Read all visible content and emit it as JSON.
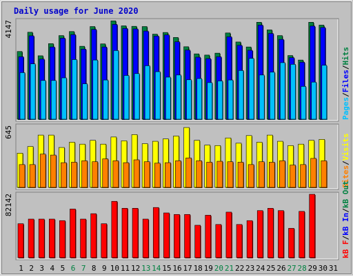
{
  "title": "Daily usage for June 2020",
  "colors": {
    "background": "#c0c0c0",
    "title": "#0000cc",
    "panel_bg": "#c0c0c0",
    "hits": "#008040",
    "files": "#0000ff",
    "pages": "#00c0ff",
    "visits": "#ffff00",
    "sites": "#ff8000",
    "kbf": "#ff0000",
    "kbin": "#0000ff",
    "kbout": "#008040",
    "weekend": "#008040",
    "weekday": "#000000"
  },
  "chart_data": {
    "type": "bar",
    "title": "Daily usage for June 2020",
    "categories": [
      "1",
      "2",
      "3",
      "4",
      "5",
      "6",
      "7",
      "8",
      "9",
      "10",
      "11",
      "12",
      "13",
      "14",
      "15",
      "16",
      "17",
      "18",
      "19",
      "20",
      "21",
      "22",
      "23",
      "24",
      "25",
      "26",
      "27",
      "28",
      "29",
      "30",
      "31"
    ],
    "weekend_days": [
      6,
      7,
      13,
      14,
      20,
      21,
      27,
      28
    ],
    "panels": [
      {
        "max_label": "4147",
        "ylim": [
          0,
          4147
        ],
        "legend": [
          {
            "text": "Pages",
            "color": "#00c0ff"
          },
          {
            "text": "/",
            "color": "#000000"
          },
          {
            "text": "Files",
            "color": "#0000ff"
          },
          {
            "text": "/",
            "color": "#000000"
          },
          {
            "text": "Hits",
            "color": "#008040"
          }
        ],
        "series": [
          {
            "name": "Hits",
            "color": "#008040",
            "values": [
              2850,
              3660,
              2670,
              3180,
              3520,
              3690,
              3070,
              3900,
              3170,
              4140,
              3930,
              3910,
              3900,
              3580,
              3650,
              3440,
              3050,
              2750,
              2700,
              2780,
              3630,
              3250,
              3040,
              4080,
              3760,
              3520,
              2680,
              2490,
              4080,
              3960,
              0
            ]
          },
          {
            "name": "Files",
            "color": "#0000ff",
            "values": [
              2630,
              3510,
              2530,
              3040,
              3410,
              3560,
              2950,
              3780,
              3040,
              3990,
              3820,
              3800,
              3710,
              3500,
              3550,
              3260,
              2910,
              2610,
              2550,
              2630,
              3470,
              3110,
              2900,
              3960,
              3610,
              3360,
              2590,
              2400,
              3920,
              3860,
              0
            ]
          },
          {
            "name": "Pages",
            "color": "#00c0ff",
            "values": [
              1960,
              2330,
              1630,
              1630,
              1740,
              2510,
              1490,
              2490,
              1650,
              2890,
              1840,
              1920,
              2250,
              2000,
              1770,
              1860,
              1660,
              1710,
              1540,
              1610,
              1650,
              2050,
              2560,
              1860,
              1980,
              2380,
              2310,
              1380,
              1560,
              2270,
              0
            ]
          }
        ]
      },
      {
        "max_label": "645",
        "ylim": [
          0,
          645
        ],
        "legend": [
          {
            "text": "Sites",
            "color": "#ff8000"
          },
          {
            "text": "/",
            "color": "#000000"
          },
          {
            "text": "Visits",
            "color": "#ffff00"
          }
        ],
        "series": [
          {
            "name": "Visits",
            "color": "#ffff00",
            "values": [
              360,
              430,
              550,
              550,
              420,
              475,
              455,
              495,
              455,
              530,
              490,
              555,
              460,
              485,
              510,
              540,
              630,
              495,
              445,
              440,
              520,
              465,
              545,
              475,
              550,
              485,
              440,
              455,
              495,
              505,
              0
            ]
          },
          {
            "name": "Sites",
            "color": "#ff8000",
            "values": [
              240,
              240,
              350,
              340,
              260,
              265,
              280,
              270,
              300,
              280,
              260,
              290,
              270,
              255,
              260,
              280,
              310,
              280,
              265,
              275,
              270,
              265,
              240,
              270,
              265,
              280,
              235,
              240,
              305,
              280,
              0
            ]
          }
        ]
      },
      {
        "max_label": "82142",
        "ylim": [
          0,
          82142
        ],
        "legend": [
          {
            "text": "kB F",
            "color": "#ff0000"
          },
          {
            "text": "/",
            "color": "#000000"
          },
          {
            "text": "kB In",
            "color": "#0000ff"
          },
          {
            "text": "/",
            "color": "#000000"
          },
          {
            "text": "kB Out",
            "color": "#008040"
          }
        ],
        "series": [
          {
            "name": "kB F",
            "color": "#ff0000",
            "values": [
              44000,
              50000,
              50000,
              50000,
              48000,
              63000,
              50000,
              57000,
              44000,
              73000,
              64000,
              64000,
              50000,
              65000,
              58000,
              56000,
              56000,
              42000,
              55000,
              43000,
              59000,
              43000,
              48000,
              61000,
              64000,
              61000,
              38000,
              60000,
              82142,
              0,
              0
            ]
          }
        ]
      }
    ]
  }
}
